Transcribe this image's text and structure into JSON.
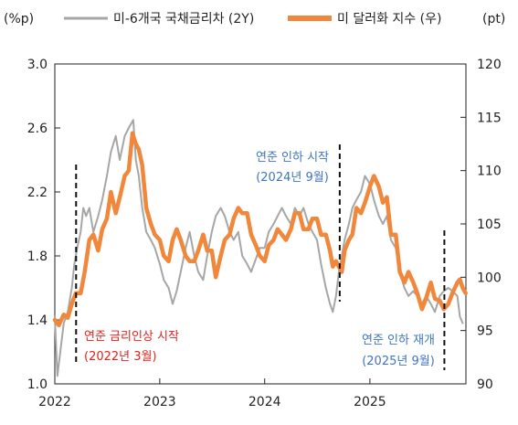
{
  "chart_data": {
    "type": "line",
    "left_axis_unit": "(%p)",
    "right_axis_unit": "(pt)",
    "x_ticks": [
      "2022",
      "2023",
      "2024",
      "2025"
    ],
    "left_ylim": [
      1.0,
      3.0
    ],
    "left_ticks": [
      "1.0",
      "1.4",
      "1.8",
      "2.2",
      "2.6",
      "3.0"
    ],
    "right_ylim": [
      90,
      120
    ],
    "right_ticks": [
      "90",
      "95",
      "100",
      "105",
      "110",
      "115",
      "120"
    ],
    "legend_position": "top",
    "series": [
      {
        "name": "미-6개국 국채금리차 (2Y)",
        "axis": "left",
        "color": "#a6a6a6",
        "points": [
          [
            "2022-01-01",
            1.42
          ],
          [
            "2022-01-10",
            1.05
          ],
          [
            "2022-01-20",
            1.2
          ],
          [
            "2022-02-01",
            1.38
          ],
          [
            "2022-02-15",
            1.45
          ],
          [
            "2022-03-01",
            1.6
          ],
          [
            "2022-03-10",
            1.75
          ],
          [
            "2022-03-20",
            1.85
          ],
          [
            "2022-04-01",
            1.95
          ],
          [
            "2022-04-10",
            2.1
          ],
          [
            "2022-04-20",
            2.05
          ],
          [
            "2022-05-01",
            2.1
          ],
          [
            "2022-05-15",
            1.95
          ],
          [
            "2022-06-01",
            2.05
          ],
          [
            "2022-06-15",
            2.15
          ],
          [
            "2022-07-01",
            2.3
          ],
          [
            "2022-07-15",
            2.45
          ],
          [
            "2022-08-01",
            2.55
          ],
          [
            "2022-08-15",
            2.4
          ],
          [
            "2022-09-01",
            2.55
          ],
          [
            "2022-09-15",
            2.6
          ],
          [
            "2022-10-01",
            2.65
          ],
          [
            "2022-10-10",
            2.4
          ],
          [
            "2022-10-20",
            2.3
          ],
          [
            "2022-11-01",
            2.1
          ],
          [
            "2022-11-15",
            1.95
          ],
          [
            "2022-12-01",
            1.9
          ],
          [
            "2022-12-15",
            1.85
          ],
          [
            "2023-01-01",
            1.75
          ],
          [
            "2023-01-15",
            1.65
          ],
          [
            "2023-02-01",
            1.6
          ],
          [
            "2023-02-15",
            1.5
          ],
          [
            "2023-03-01",
            1.58
          ],
          [
            "2023-03-15",
            1.7
          ],
          [
            "2023-04-01",
            1.85
          ],
          [
            "2023-04-15",
            1.95
          ],
          [
            "2023-05-01",
            1.8
          ],
          [
            "2023-05-15",
            1.7
          ],
          [
            "2023-06-01",
            1.65
          ],
          [
            "2023-06-15",
            1.8
          ],
          [
            "2023-07-01",
            1.95
          ],
          [
            "2023-07-15",
            2.05
          ],
          [
            "2023-08-01",
            2.1
          ],
          [
            "2023-08-15",
            2.05
          ],
          [
            "2023-09-01",
            1.95
          ],
          [
            "2023-09-15",
            1.9
          ],
          [
            "2023-10-01",
            1.95
          ],
          [
            "2023-10-15",
            1.8
          ],
          [
            "2023-11-01",
            1.75
          ],
          [
            "2023-11-15",
            1.7
          ],
          [
            "2023-12-01",
            1.78
          ],
          [
            "2023-12-15",
            1.85
          ],
          [
            "2024-01-01",
            1.85
          ],
          [
            "2024-01-15",
            1.95
          ],
          [
            "2024-02-01",
            2.0
          ],
          [
            "2024-02-15",
            2.05
          ],
          [
            "2024-03-01",
            2.1
          ],
          [
            "2024-03-15",
            2.05
          ],
          [
            "2024-04-01",
            2.0
          ],
          [
            "2024-04-15",
            2.1
          ],
          [
            "2024-05-01",
            2.05
          ],
          [
            "2024-05-15",
            2.1
          ],
          [
            "2024-06-01",
            2.0
          ],
          [
            "2024-06-15",
            1.95
          ],
          [
            "2024-07-01",
            1.9
          ],
          [
            "2024-07-15",
            1.75
          ],
          [
            "2024-08-01",
            1.6
          ],
          [
            "2024-08-15",
            1.5
          ],
          [
            "2024-08-25",
            1.45
          ],
          [
            "2024-09-05",
            1.55
          ],
          [
            "2024-09-15",
            1.7
          ],
          [
            "2024-09-25",
            1.8
          ],
          [
            "2024-10-05",
            1.9
          ],
          [
            "2024-10-20",
            2.0
          ],
          [
            "2024-11-01",
            2.1
          ],
          [
            "2024-11-15",
            2.15
          ],
          [
            "2024-12-01",
            2.2
          ],
          [
            "2024-12-15",
            2.3
          ],
          [
            "2025-01-01",
            2.25
          ],
          [
            "2025-01-15",
            2.15
          ],
          [
            "2025-02-01",
            2.05
          ],
          [
            "2025-02-15",
            2.0
          ],
          [
            "2025-03-01",
            2.05
          ],
          [
            "2025-03-15",
            1.9
          ],
          [
            "2025-04-01",
            1.85
          ],
          [
            "2025-04-15",
            1.7
          ],
          [
            "2025-05-01",
            1.6
          ],
          [
            "2025-05-15",
            1.55
          ],
          [
            "2025-06-01",
            1.58
          ],
          [
            "2025-06-15",
            1.55
          ],
          [
            "2025-07-01",
            1.5
          ],
          [
            "2025-07-15",
            1.55
          ],
          [
            "2025-08-01",
            1.5
          ],
          [
            "2025-08-15",
            1.45
          ],
          [
            "2025-09-01",
            1.55
          ],
          [
            "2025-09-15",
            1.58
          ],
          [
            "2025-10-01",
            1.6
          ],
          [
            "2025-10-15",
            1.58
          ],
          [
            "2025-11-01",
            1.55
          ],
          [
            "2025-11-10",
            1.42
          ],
          [
            "2025-11-20",
            1.38
          ]
        ]
      },
      {
        "name": "미 달러화 지수 (우)",
        "axis": "right",
        "color": "#f0873a",
        "points": [
          [
            "2022-01-01",
            96.0
          ],
          [
            "2022-01-15",
            95.5
          ],
          [
            "2022-02-01",
            96.5
          ],
          [
            "2022-02-15",
            96.2
          ],
          [
            "2022-03-01",
            97.5
          ],
          [
            "2022-03-15",
            98.5
          ],
          [
            "2022-04-01",
            98.5
          ],
          [
            "2022-04-15",
            100.5
          ],
          [
            "2022-05-01",
            103.5
          ],
          [
            "2022-05-15",
            104.0
          ],
          [
            "2022-06-01",
            102.5
          ],
          [
            "2022-06-15",
            104.5
          ],
          [
            "2022-07-01",
            105.5
          ],
          [
            "2022-07-15",
            108.0
          ],
          [
            "2022-08-01",
            106.0
          ],
          [
            "2022-08-15",
            107.5
          ],
          [
            "2022-09-01",
            109.5
          ],
          [
            "2022-09-15",
            110.0
          ],
          [
            "2022-09-28",
            113.5
          ],
          [
            "2022-10-10",
            112.5
          ],
          [
            "2022-10-20",
            112.0
          ],
          [
            "2022-11-01",
            110.5
          ],
          [
            "2022-11-15",
            106.5
          ],
          [
            "2022-12-01",
            105.0
          ],
          [
            "2022-12-15",
            104.0
          ],
          [
            "2023-01-01",
            103.5
          ],
          [
            "2023-01-15",
            102.0
          ],
          [
            "2023-02-01",
            101.5
          ],
          [
            "2023-02-15",
            103.5
          ],
          [
            "2023-03-01",
            104.5
          ],
          [
            "2023-03-15",
            103.5
          ],
          [
            "2023-04-01",
            102.0
          ],
          [
            "2023-04-15",
            101.5
          ],
          [
            "2023-05-01",
            101.5
          ],
          [
            "2023-05-15",
            102.5
          ],
          [
            "2023-06-01",
            104.0
          ],
          [
            "2023-06-15",
            102.5
          ],
          [
            "2023-07-01",
            102.5
          ],
          [
            "2023-07-15",
            100.0
          ],
          [
            "2023-08-01",
            102.0
          ],
          [
            "2023-08-15",
            103.5
          ],
          [
            "2023-09-01",
            104.0
          ],
          [
            "2023-09-15",
            105.5
          ],
          [
            "2023-10-01",
            106.5
          ],
          [
            "2023-10-15",
            106.0
          ],
          [
            "2023-11-01",
            106.0
          ],
          [
            "2023-11-15",
            104.0
          ],
          [
            "2023-12-01",
            103.0
          ],
          [
            "2023-12-15",
            102.0
          ],
          [
            "2024-01-01",
            101.5
          ],
          [
            "2024-01-15",
            103.0
          ],
          [
            "2024-02-01",
            103.5
          ],
          [
            "2024-02-15",
            104.5
          ],
          [
            "2024-03-01",
            104.0
          ],
          [
            "2024-03-15",
            103.5
          ],
          [
            "2024-04-01",
            104.5
          ],
          [
            "2024-04-15",
            106.0
          ],
          [
            "2024-05-01",
            106.0
          ],
          [
            "2024-05-15",
            104.5
          ],
          [
            "2024-06-01",
            104.5
          ],
          [
            "2024-06-15",
            105.5
          ],
          [
            "2024-07-01",
            105.5
          ],
          [
            "2024-07-15",
            104.0
          ],
          [
            "2024-08-01",
            104.0
          ],
          [
            "2024-08-15",
            102.5
          ],
          [
            "2024-08-25",
            101.0
          ],
          [
            "2024-09-05",
            101.5
          ],
          [
            "2024-09-15",
            101.0
          ],
          [
            "2024-09-25",
            100.5
          ],
          [
            "2024-10-05",
            102.5
          ],
          [
            "2024-10-20",
            103.5
          ],
          [
            "2024-11-01",
            104.0
          ],
          [
            "2024-11-15",
            106.5
          ],
          [
            "2024-12-01",
            106.0
          ],
          [
            "2024-12-15",
            107.0
          ],
          [
            "2025-01-01",
            108.5
          ],
          [
            "2025-01-15",
            109.5
          ],
          [
            "2025-02-01",
            108.5
          ],
          [
            "2025-02-15",
            107.0
          ],
          [
            "2025-03-01",
            107.5
          ],
          [
            "2025-03-15",
            104.0
          ],
          [
            "2025-04-01",
            104.0
          ],
          [
            "2025-04-15",
            100.5
          ],
          [
            "2025-05-01",
            99.5
          ],
          [
            "2025-05-15",
            100.5
          ],
          [
            "2025-06-01",
            99.5
          ],
          [
            "2025-06-15",
            98.5
          ],
          [
            "2025-07-01",
            97.0
          ],
          [
            "2025-07-15",
            98.0
          ],
          [
            "2025-08-01",
            99.5
          ],
          [
            "2025-08-15",
            98.0
          ],
          [
            "2025-09-01",
            97.8
          ],
          [
            "2025-09-15",
            97.0
          ],
          [
            "2025-10-01",
            97.5
          ],
          [
            "2025-10-15",
            98.5
          ],
          [
            "2025-11-01",
            99.5
          ],
          [
            "2025-11-10",
            99.8
          ],
          [
            "2025-11-20",
            99.0
          ],
          [
            "2025-11-30",
            98.5
          ]
        ]
      }
    ],
    "annotations": [
      {
        "x": "2022-03-16",
        "line1": "연준 금리인상 시작",
        "line2": "(2022년 3월)",
        "color": "#e8201a"
      },
      {
        "x": "2024-09-18",
        "line1": "연준 인하 시작",
        "line2": "(2024년 9월)",
        "color": "#3e74c4"
      },
      {
        "x": "2025-09-17",
        "line1": "연준 인하 재개",
        "line2": "(2025년 9월)",
        "color": "#3e74c4"
      }
    ]
  }
}
